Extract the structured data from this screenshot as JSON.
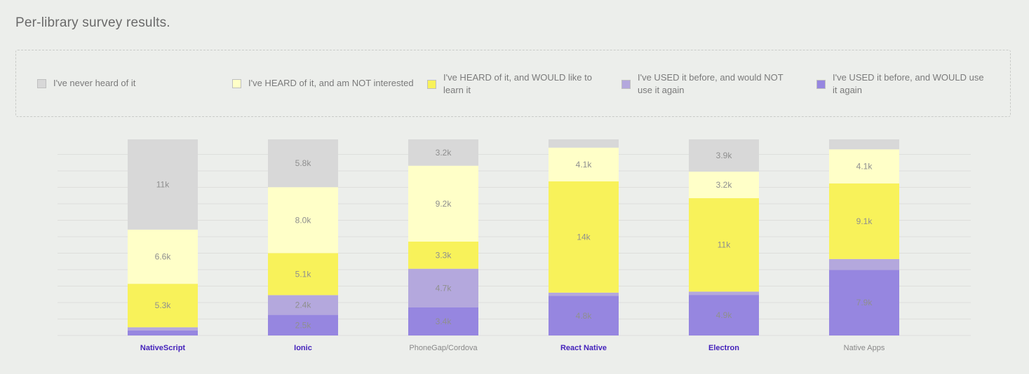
{
  "title": "Per-library survey results.",
  "legend": [
    {
      "label": "I've never heard of it",
      "color": "#d8d8d8"
    },
    {
      "label": "I've HEARD of it, and am NOT interested",
      "color": "#ffffc8"
    },
    {
      "label": "I've HEARD of it, and WOULD like to learn it",
      "color": "#f8f25a"
    },
    {
      "label": "I've USED it before, and would NOT use it again",
      "color": "#b4a8dd"
    },
    {
      "label": "I've USED it before, and WOULD use it again",
      "color": "#9686e0"
    }
  ],
  "chart_data": {
    "type": "bar",
    "stacked": true,
    "categories": [
      "NativeScript",
      "Ionic",
      "PhoneGap/Cordova",
      "React Native",
      "Electron",
      "Native Apps"
    ],
    "category_highlighted": [
      true,
      true,
      false,
      true,
      true,
      false
    ],
    "category_colors": {
      "highlighted": "#4422bb",
      "normal": "#888888"
    },
    "series": [
      {
        "name": "I've never heard of it",
        "color": "#d8d8d8",
        "values": [
          11000,
          5800,
          3200,
          1000,
          3900,
          1200
        ],
        "labels": [
          "11k",
          "5.8k",
          "3.2k",
          "",
          "3.9k",
          ""
        ]
      },
      {
        "name": "I've HEARD of it, and am NOT interested",
        "color": "#ffffc8",
        "values": [
          6600,
          8000,
          9200,
          4100,
          3200,
          4100
        ],
        "labels": [
          "6.6k",
          "8.0k",
          "9.2k",
          "4.1k",
          "3.2k",
          "4.1k"
        ]
      },
      {
        "name": "I've HEARD of it, and WOULD like to learn it",
        "color": "#f8f25a",
        "values": [
          5300,
          5100,
          3300,
          13500,
          11300,
          9100
        ],
        "labels": [
          "5.3k",
          "5.1k",
          "3.3k",
          "14k",
          "11k",
          "9.1k"
        ]
      },
      {
        "name": "I've USED it before, and would NOT use it again",
        "color": "#b4a8dd",
        "values": [
          400,
          2400,
          4700,
          400,
          400,
          1300
        ],
        "labels": [
          "",
          "2.4k",
          "4.7k",
          "",
          "",
          ""
        ]
      },
      {
        "name": "I've USED it before, and WOULD use it again",
        "color": "#9686e0",
        "values": [
          600,
          2500,
          3400,
          4800,
          4900,
          7900
        ],
        "labels": [
          "",
          "2.5k",
          "3.4k",
          "4.8k",
          "4.9k",
          "7.9k"
        ]
      }
    ],
    "grid": true,
    "legend_position": "top"
  }
}
